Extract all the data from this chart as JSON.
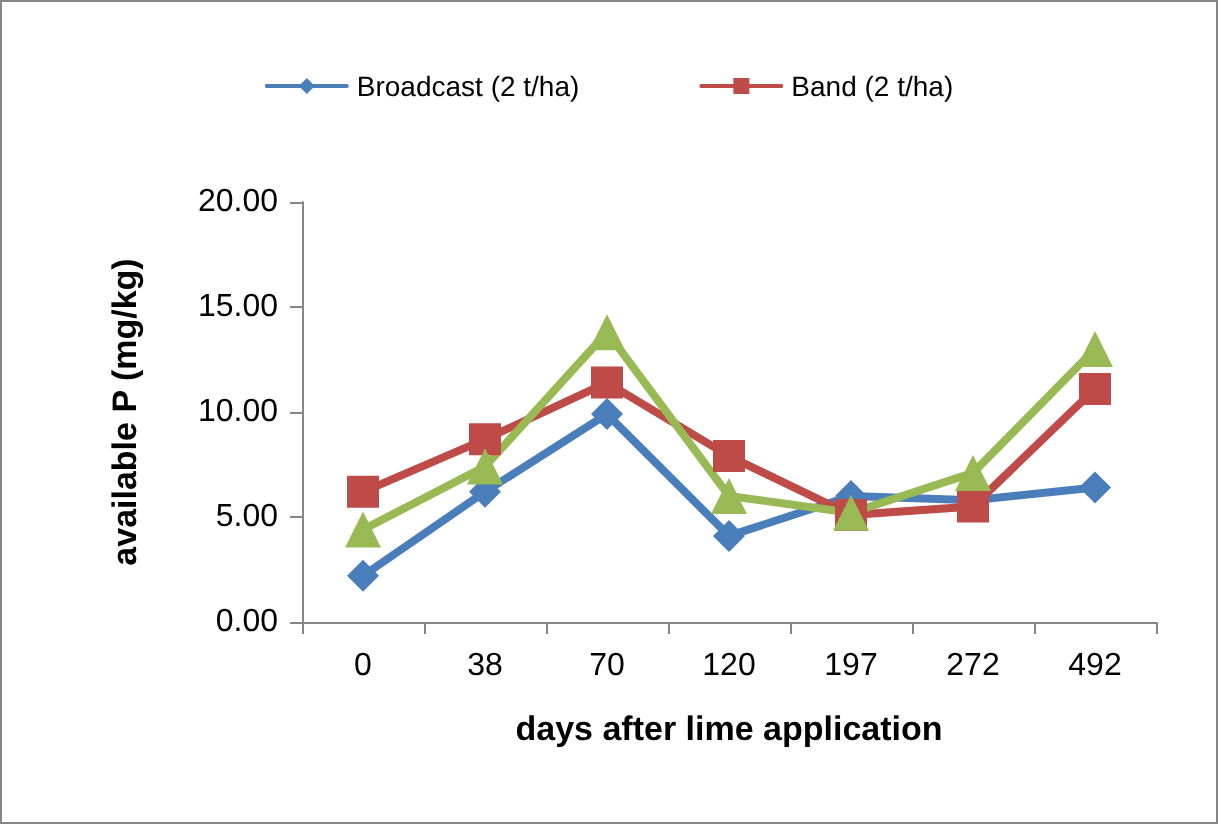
{
  "chart_data": {
    "type": "line",
    "xlabel": "days after lime application",
    "ylabel": "available P (mg/kg)",
    "categories": [
      "0",
      "38",
      "70",
      "120",
      "197",
      "272",
      "492"
    ],
    "series": [
      {
        "name": "Broadcast (2 t/ha)",
        "color": "#4a7ebb",
        "marker": "diamond",
        "values": [
          2.2,
          6.2,
          9.9,
          4.1,
          6.0,
          5.8,
          6.4
        ]
      },
      {
        "name": "Band (2 t/ha)",
        "color": "#be4b48",
        "marker": "square",
        "values": [
          6.2,
          8.7,
          11.4,
          7.9,
          5.1,
          5.5,
          11.1
        ]
      },
      {
        "color": "#98b954",
        "marker": "triangle",
        "values": [
          4.4,
          7.4,
          13.8,
          6.0,
          5.2,
          7.1,
          13.0
        ]
      }
    ],
    "ylim": [
      0,
      20
    ],
    "yticks": [
      {
        "value": 0,
        "label": "0.00"
      },
      {
        "value": 5,
        "label": "5.00"
      },
      {
        "value": 10,
        "label": "10.00"
      },
      {
        "value": 15,
        "label": "15.00"
      },
      {
        "value": 20,
        "label": "20.00"
      }
    ],
    "grid": false,
    "legend": "top",
    "line_style": "solid"
  }
}
